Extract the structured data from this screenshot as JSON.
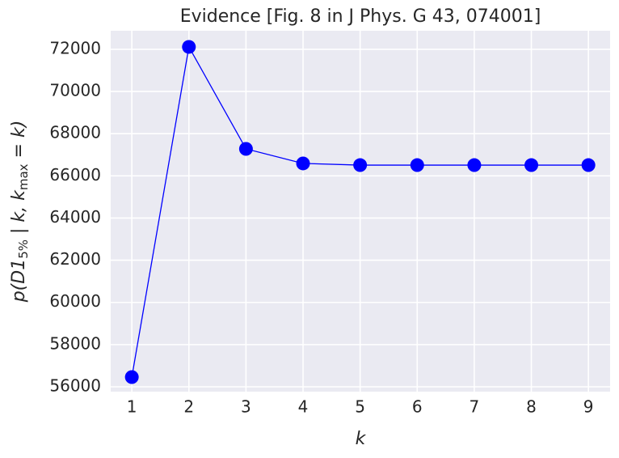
{
  "chart_data": {
    "type": "line",
    "title": "Evidence [Fig. 8 in J Phys. G 43, 074001]",
    "xlabel": "k",
    "ylabel": [
      "p(D1",
      "5%",
      " | k, k",
      "max",
      " = k)"
    ],
    "x": [
      1,
      2,
      3,
      4,
      5,
      6,
      7,
      8,
      9
    ],
    "series": [
      {
        "color": "#0000ff",
        "values": [
          56460,
          72115,
          67280,
          66590,
          66510,
          66510,
          66510,
          66510,
          66510
        ]
      }
    ],
    "xlim": [
      0.63,
      9.38
    ],
    "xticks": [
      1,
      2,
      3,
      4,
      5,
      6,
      7,
      8,
      9
    ],
    "ylim": [
      55770,
      72880
    ],
    "yticks": [
      56000,
      58000,
      60000,
      62000,
      64000,
      66000,
      68000,
      70000,
      72000
    ],
    "grid": true,
    "background": "#eaeaf2"
  }
}
